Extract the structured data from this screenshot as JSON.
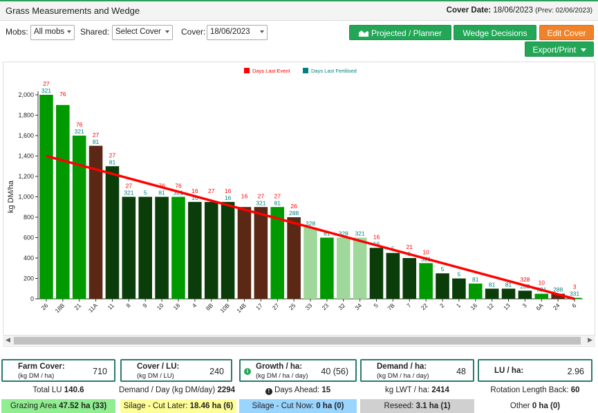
{
  "header": {
    "title": "Grass Measurements and Wedge",
    "cover_date_label": "Cover Date:",
    "cover_date": "18/06/2023",
    "prev": "(Prev: 02/06/2023)"
  },
  "filters": {
    "mobs_label": "Mobs:",
    "mobs_value": "All mobs",
    "shared_label": "Shared:",
    "shared_value": "Select Cover",
    "cover_label": "Cover:",
    "cover_value": "18/06/2023"
  },
  "buttons": {
    "projected": "Projected / Planner",
    "wedge": "Wedge Decisions",
    "edit": "Edit Cover",
    "export": "Export/Print"
  },
  "colors": {
    "dark_green": "#0a3d0a",
    "mid_green": "#009a00",
    "light_green": "#9fd89a",
    "brown": "#5a2814",
    "grazed_red": "#ff0000",
    "fert_teal": "#008080"
  },
  "chart_data": {
    "type": "bar",
    "legend": [
      "Days Last Event",
      "Days Last Fertilised"
    ],
    "ylabel": "kg DM/ha",
    "ylim": [
      0,
      2000
    ],
    "yticks": [
      0,
      200,
      400,
      600,
      800,
      1000,
      1200,
      1400,
      1600,
      1800,
      2000
    ],
    "trendline": {
      "start": 1400,
      "end": 0
    },
    "categories": [
      "26",
      "18B",
      "21",
      "11A",
      "11",
      "8",
      "9",
      "10",
      "18",
      "4",
      "8B",
      "10B",
      "14B",
      "17",
      "27",
      "25",
      "33",
      "23",
      "32",
      "34",
      "5",
      "7B",
      "7",
      "22",
      "2",
      "1",
      "16",
      "12",
      "13",
      "3",
      "6A",
      "24",
      "6"
    ],
    "values": [
      2000,
      1900,
      1600,
      1500,
      1300,
      1000,
      1000,
      1000,
      1000,
      950,
      950,
      950,
      900,
      900,
      900,
      800,
      700,
      600,
      600,
      600,
      500,
      450,
      400,
      350,
      250,
      200,
      150,
      100,
      100,
      80,
      50,
      50,
      10
    ],
    "bar_color": [
      "mid",
      "mid",
      "mid",
      "brown",
      "dark",
      "dark",
      "dark",
      "dark",
      "mid",
      "dark",
      "dark",
      "dark",
      "brown",
      "brown",
      "mid",
      "brown",
      "light",
      "mid",
      "light",
      "light",
      "dark",
      "dark",
      "dark",
      "mid",
      "dark",
      "dark",
      "mid",
      "dark",
      "dark",
      "dark",
      "mid",
      "brown",
      "mid"
    ],
    "days_last_event": [
      "27",
      "76",
      "76",
      "27",
      "27",
      "27",
      "",
      "76",
      "76",
      "16",
      "27",
      "16",
      "16",
      "27",
      "27",
      "26",
      "",
      "",
      "",
      "",
      "16",
      "",
      "21",
      "10",
      "",
      "",
      "",
      "",
      "",
      "328",
      "10",
      "",
      "3"
    ],
    "days_last_fertilised": [
      "321",
      "",
      "321",
      "81",
      "81",
      "321",
      "5",
      "81",
      "321",
      "16",
      "",
      "16",
      "",
      "321",
      "81",
      "288",
      "328",
      "81",
      "328",
      "321",
      "16",
      "5",
      "5",
      "321",
      "5",
      "5",
      "81",
      "81",
      "81",
      "288",
      "331",
      "288",
      "331"
    ]
  },
  "stats": {
    "farm_cover_label": "Farm Cover:",
    "farm_cover_unit": "(kg DM / ha)",
    "farm_cover": "710",
    "cover_lu_label": "Cover / LU:",
    "cover_lu_unit": "(kg DM / LU)",
    "cover_lu": "240",
    "growth_label": "Growth / ha:",
    "growth_unit": "(kg DM / ha / day)",
    "growth": "40 (56)",
    "demand_label": "Demand / ha:",
    "demand_unit": "(kg DM / ha / day)",
    "demand": "48",
    "lu_ha_label": "LU / ha:",
    "lu_ha": "2.96",
    "total_lu_label": "Total LU",
    "total_lu": "140.6",
    "demand_day_label": "Demand / Day (kg DM/day)",
    "demand_day": "2294",
    "days_ahead_label": "Days Ahead:",
    "days_ahead": "15",
    "kg_lwt_label": "kg LWT / ha:",
    "kg_lwt": "2414",
    "rotation_label": "Rotation Length Back:",
    "rotation": "60",
    "grazing_label": "Grazing Area",
    "grazing": "47.52 ha (33)",
    "silage_later_label": "Silage - Cut Later:",
    "silage_later": "18.46 ha (6)",
    "silage_now_label": "Silage - Cut Now:",
    "silage_now": "0 ha (0)",
    "reseed_label": "Reseed:",
    "reseed": "3.1 ha (1)",
    "other_label": "Other",
    "other": "0 ha (0)"
  }
}
